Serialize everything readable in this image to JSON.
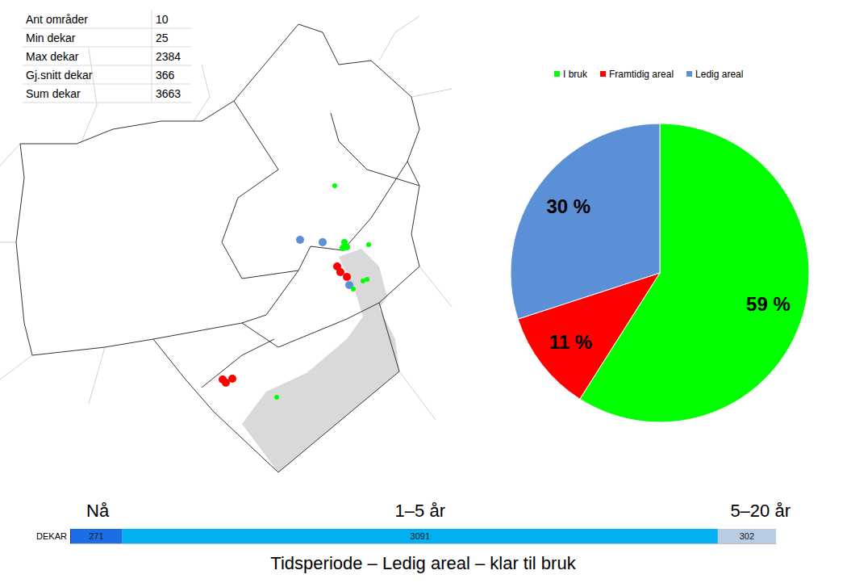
{
  "table": {
    "rows": [
      [
        "Ant områder",
        10
      ],
      [
        "Min dekar",
        25
      ],
      [
        "Max dekar",
        2384
      ],
      [
        "Gj.snitt dekar",
        366
      ],
      [
        "Sum dekar",
        3663
      ]
    ]
  },
  "chart_data": [
    {
      "type": "pie",
      "categories": [
        "I bruk",
        "Framtidig areal",
        "Ledig areal"
      ],
      "values": [
        59,
        11,
        30
      ],
      "value_labels": [
        "59 %",
        "11 %",
        "30 %"
      ],
      "colors": [
        "#00ff00",
        "#ff0000",
        "#5b8fd6"
      ],
      "legend": "top",
      "data_labels": true
    },
    {
      "type": "bar",
      "title": "Tidsperiode – Ledig areal – klar til bruk",
      "orientation": "horizontal",
      "stacked": true,
      "categories": [
        "DEKAR"
      ],
      "series": [
        {
          "name": "Nå",
          "color": "#1a6ee6",
          "values": [
            271
          ]
        },
        {
          "name": "1–5 år",
          "color": "#00b0f0",
          "values": [
            3091
          ]
        },
        {
          "name": "5–20 år",
          "color": "#b8cce4",
          "values": [
            302
          ]
        }
      ],
      "xlim": [
        0,
        3664
      ],
      "xticks": [],
      "tick_labels": "y",
      "data_labels": true
    }
  ]
}
